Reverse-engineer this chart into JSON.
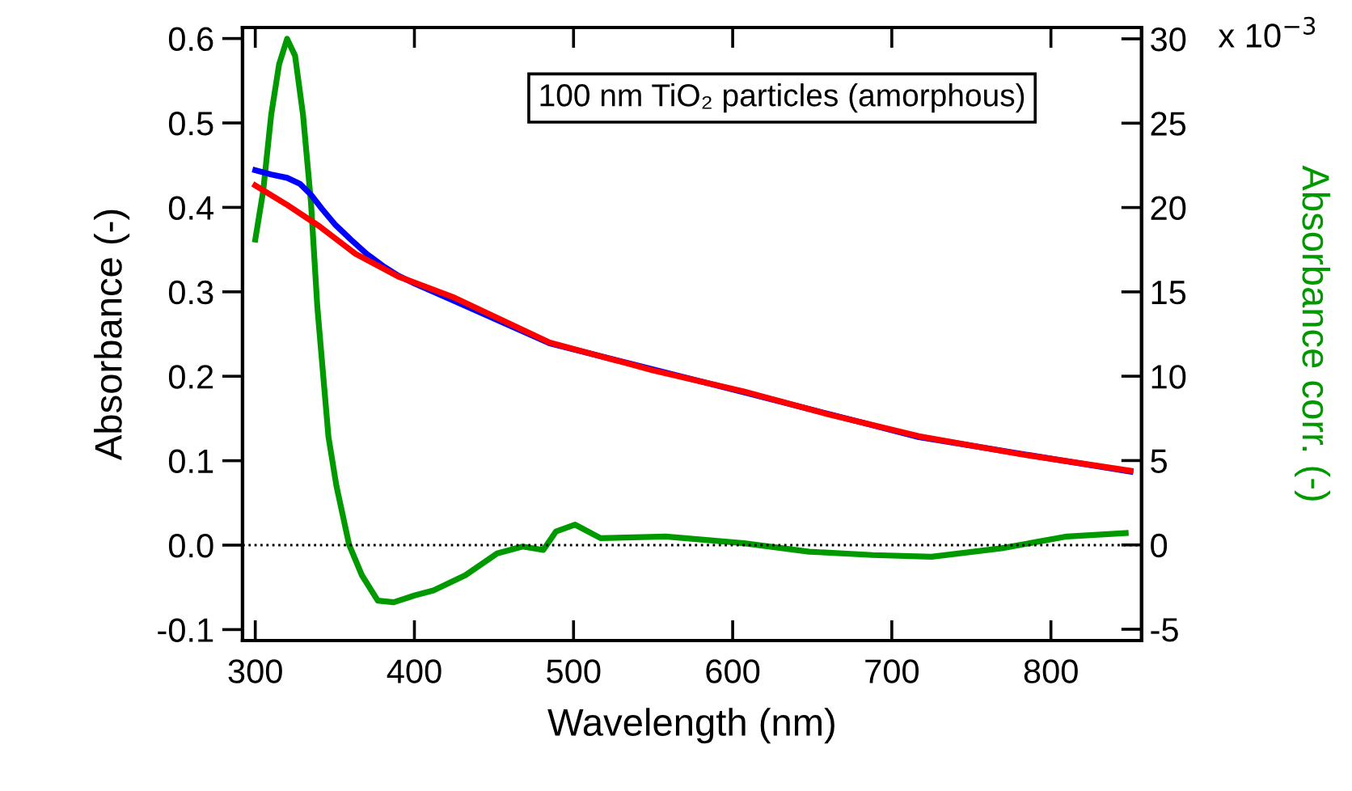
{
  "chart_data": {
    "type": "line",
    "xlabel": "Wavelength (nm)",
    "ylabel": "Absorbance (-)",
    "y2label": "Absorbance corr. (-)",
    "annotations": [
      "100 nm TiO₂ particles (amorphous)",
      "x 10$^{−3}$"
    ],
    "xlim": [
      292,
      857
    ],
    "xticks": [
      300,
      400,
      500,
      600,
      700,
      800
    ],
    "ylim": [
      -0.113,
      0.613
    ],
    "yticks": [
      {
        "value": -0.1,
        "label": "-0.1"
      },
      {
        "value": 0,
        "label": "0.0"
      },
      0.1,
      0.2,
      0.3,
      0.4,
      0.5,
      0.6
    ],
    "y2lim": [
      -5.67,
      30.67
    ],
    "y2ticks": [
      -5,
      0,
      5,
      10,
      15,
      20,
      25,
      30
    ],
    "ref_lines": [
      {
        "axis": "y",
        "value": 0,
        "color": "#000000",
        "line_style": "dotted"
      }
    ],
    "grid": false,
    "legend": false,
    "line_style": "solid",
    "marker": "none",
    "series": [
      {
        "color": "#0000ff",
        "x": [
          300,
          310,
          320,
          328,
          335,
          342,
          350,
          360,
          370,
          380,
          390,
          400,
          424,
          485,
          607,
          717,
          850
        ],
        "values": [
          0.444,
          0.439,
          0.435,
          0.428,
          0.415,
          0.398,
          0.38,
          0.362,
          0.345,
          0.331,
          0.319,
          0.31,
          0.29,
          0.239,
          0.181,
          0.128,
          0.087
        ]
      },
      {
        "color": "#ff0000",
        "x": [
          300,
          320,
          340,
          363,
          390,
          424,
          485,
          550,
          607,
          660,
          717,
          780,
          850
        ],
        "values": [
          0.426,
          0.403,
          0.378,
          0.345,
          0.318,
          0.294,
          0.24,
          0.207,
          0.182,
          0.155,
          0.129,
          0.108,
          0.088
        ]
      },
      {
        "color": "#009900",
        "axis": "y2",
        "x": [
          300,
          305,
          310,
          315,
          320,
          325,
          330,
          335,
          339,
          346,
          351,
          359,
          367,
          377,
          387,
          400,
          412,
          432,
          452,
          468,
          481,
          489,
          501,
          517,
          558,
          607,
          648,
          688,
          725,
          769,
          810,
          847
        ],
        "values": [
          18.1,
          21,
          25.5,
          28.5,
          30,
          29,
          25.5,
          20.3,
          14.1,
          6.4,
          3.5,
          0,
          -1.8,
          -3.3,
          -3.4,
          -3.0,
          -2.7,
          -1.8,
          -0.5,
          -0.1,
          -0.3,
          0.8,
          1.2,
          0.4,
          0.5,
          0.1,
          -0.4,
          -0.6,
          -0.7,
          -0.2,
          0.5,
          0.7
        ]
      }
    ]
  }
}
